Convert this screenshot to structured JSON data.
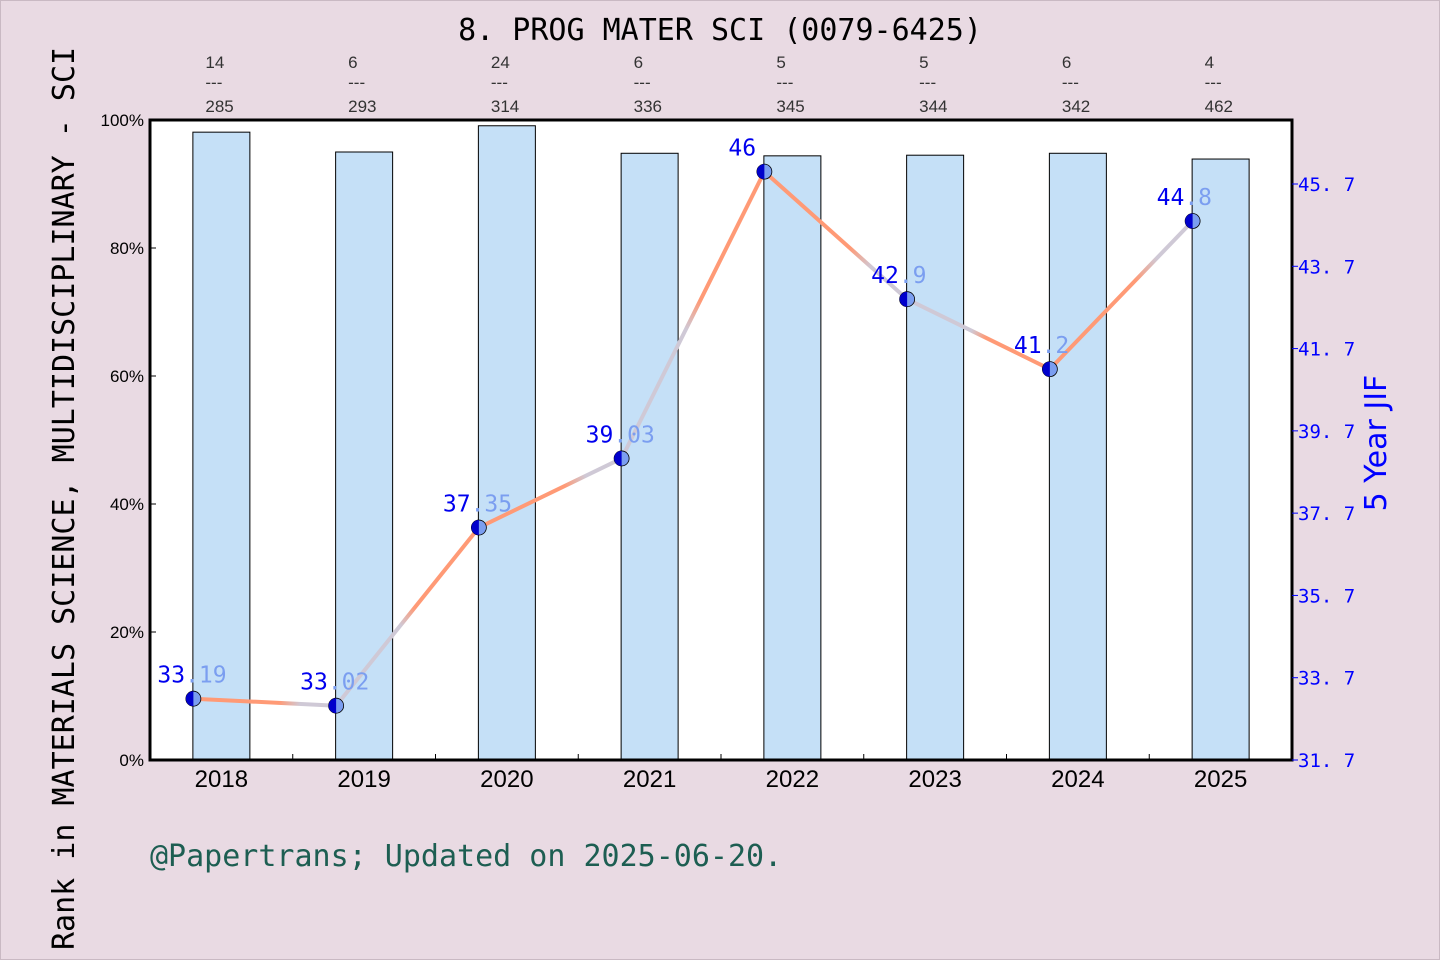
{
  "chart_data": {
    "type": "bar+line",
    "title": "8. PROG MATER SCI (0079-6425)",
    "categories": [
      "2018",
      "2019",
      "2020",
      "2021",
      "2022",
      "2023",
      "2024",
      "2025"
    ],
    "bar_series": {
      "values": [
        98.1,
        95.0,
        99.1,
        94.8,
        94.4,
        94.5,
        94.8,
        93.9
      ],
      "axis": "left",
      "ylim": [
        0,
        100
      ],
      "yticks": [
        "0%",
        "20%",
        "40%",
        "60%",
        "80%",
        "100%"
      ],
      "color": "#c5e0f7"
    },
    "rank_labels": [
      {
        "rank": "14",
        "total": "285"
      },
      {
        "rank": "6",
        "total": "293"
      },
      {
        "rank": "24",
        "total": "314"
      },
      {
        "rank": "6",
        "total": "336"
      },
      {
        "rank": "5",
        "total": "345"
      },
      {
        "rank": "5",
        "total": "344"
      },
      {
        "rank": "6",
        "total": "342"
      },
      {
        "rank": "4",
        "total": "462"
      }
    ],
    "rank_separator": "---",
    "line_series": {
      "values": [
        33.19,
        33.02,
        37.35,
        39.03,
        46,
        42.9,
        41.2,
        44.8
      ],
      "labels": [
        "33.19",
        "33.02",
        "37.35",
        "39.03",
        "46",
        "42.9",
        "41.2",
        "44.8"
      ],
      "axis": "right",
      "ylim": [
        31.7,
        46.7
      ],
      "yticks": [
        "31.7",
        "33.7",
        "35.7",
        "37.7",
        "39.7",
        "41.7",
        "43.7",
        "45.7"
      ],
      "color": "#ff9a76",
      "marker_color": "#0000cc",
      "label_color": "#0000ee",
      "label_decimal_color": "#7b9ef0"
    },
    "ylabel": "Rank in MATERIALS SCIENCE, MULTIDISCIPLINARY - SCI",
    "y2label": "5 Year JIF",
    "footer": "@Papertrans; Updated on 2025-06-20.",
    "background": "#e9dae3"
  }
}
